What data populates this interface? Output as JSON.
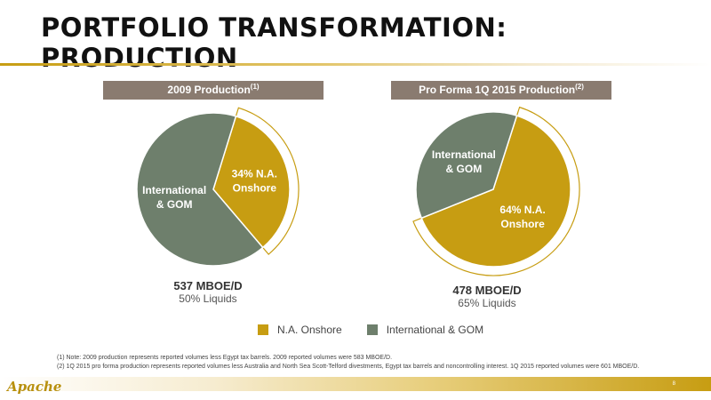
{
  "title": "PORTFOLIO TRANSFORMATION: PRODUCTION",
  "colors": {
    "na_onshore": "#c79d12",
    "international": "#6e7f6c",
    "header_bg": "#8a7b70"
  },
  "chart_data": [
    {
      "type": "pie",
      "title": "2009 Production",
      "title_note": "(1)",
      "labels": [
        "N.A. Onshore",
        "International & GOM"
      ],
      "values": [
        34,
        66
      ],
      "slice_labels": [
        [
          "34% N.A.",
          "Onshore"
        ],
        [
          "International",
          "& GOM"
        ]
      ],
      "total": "537 MBOE/D",
      "liquids": "50% Liquids"
    },
    {
      "type": "pie",
      "title": "Pro Forma 1Q 2015 Production",
      "title_note": "(2)",
      "labels": [
        "N.A. Onshore",
        "International & GOM"
      ],
      "values": [
        64,
        36
      ],
      "slice_labels": [
        [
          "64% N.A.",
          "Onshore"
        ],
        [
          "International",
          "& GOM"
        ]
      ],
      "total": "478 MBOE/D",
      "liquids": "65% Liquids"
    }
  ],
  "legend": {
    "items": [
      "N.A. Onshore",
      "International & GOM"
    ]
  },
  "footnotes": [
    "(1) Note: 2009 production represents reported volumes less Egypt tax barrels. 2009 reported volumes were 583 MBOE/D.",
    "(2) 1Q 2015 pro forma production represents reported volumes less Australia and North Sea Scott-Telford divestments, Egypt tax barrels and noncontrolling interest. 1Q 2015 reported volumes were 601 MBOE/D."
  ],
  "logo": "Apache",
  "page_number": "8"
}
